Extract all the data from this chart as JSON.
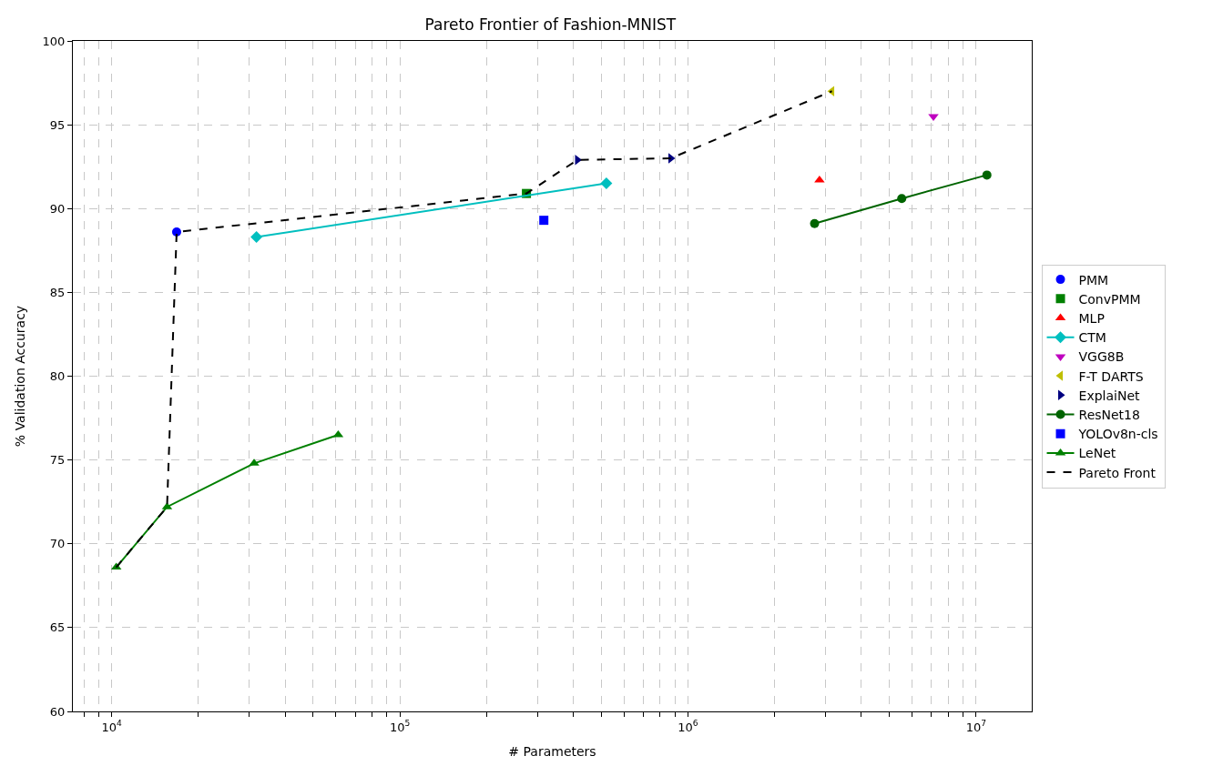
{
  "chart_data": {
    "type": "scatter",
    "title": "Pareto Frontier of Fashion-MNIST",
    "xlabel": "# Parameters",
    "ylabel": "% Validation Accuracy",
    "log": "x",
    "grid": true,
    "legend": "right",
    "xlim": [
      7330,
      15600000
    ],
    "xticks": [
      {
        "value": 8000,
        "label": null
      },
      {
        "value": 9000,
        "label": null
      },
      {
        "value": 10000,
        "label": "10$^{4}$"
      },
      {
        "value": 20000,
        "label": null
      },
      {
        "value": 30000,
        "label": null
      },
      {
        "value": 40000,
        "label": null
      },
      {
        "value": 50000,
        "label": null
      },
      {
        "value": 60000,
        "label": null
      },
      {
        "value": 70000,
        "label": null
      },
      {
        "value": 80000,
        "label": null
      },
      {
        "value": 90000,
        "label": null
      },
      {
        "value": 100000,
        "label": "10$^{5}$"
      },
      {
        "value": 200000,
        "label": null
      },
      {
        "value": 300000,
        "label": null
      },
      {
        "value": 400000,
        "label": null
      },
      {
        "value": 500000,
        "label": null
      },
      {
        "value": 600000,
        "label": null
      },
      {
        "value": 700000,
        "label": null
      },
      {
        "value": 800000,
        "label": null
      },
      {
        "value": 900000,
        "label": null
      },
      {
        "value": 1000000,
        "label": "10$^{6}$"
      },
      {
        "value": 2000000,
        "label": null
      },
      {
        "value": 3000000,
        "label": null
      },
      {
        "value": 4000000,
        "label": null
      },
      {
        "value": 5000000,
        "label": null
      },
      {
        "value": 6000000,
        "label": null
      },
      {
        "value": 7000000,
        "label": null
      },
      {
        "value": 8000000,
        "label": null
      },
      {
        "value": 9000000,
        "label": null
      },
      {
        "value": 10000000,
        "label": "10$^{7}$"
      }
    ],
    "ylim": [
      60,
      100
    ],
    "yticks": [
      60,
      65,
      70,
      75,
      80,
      85,
      90,
      95,
      100
    ],
    "series": [
      {
        "name": "PMM",
        "marker": "circle",
        "color": "#0000ff",
        "x": [
          16800
        ],
        "values": [
          88.6
        ]
      },
      {
        "name": "ConvPMM",
        "marker": "square",
        "color": "#008000",
        "x": [
          275000
        ],
        "values": [
          90.9
        ]
      },
      {
        "name": "MLP",
        "marker": "triangle",
        "color": "#ff0000",
        "x": [
          2860000
        ],
        "values": [
          91.7
        ]
      },
      {
        "name": "CTM",
        "type": "line",
        "marker": "diamond",
        "line_style": "solid",
        "color": "#00bfbf",
        "x": [
          31800,
          521000
        ],
        "values": [
          88.3,
          91.5
        ]
      },
      {
        "name": "VGG8B",
        "marker": "triangle-down",
        "color": "#bf00bf",
        "x": [
          7110000
        ],
        "values": [
          95.5
        ]
      },
      {
        "name": "F-T DARTS",
        "marker": "triangle-left",
        "color": "#bfbf00",
        "x": [
          3160000
        ],
        "values": [
          97.0
        ]
      },
      {
        "name": "ExplaiNet",
        "marker": "triangle-right",
        "color": "#000080",
        "x": [
          413000,
          871000
        ],
        "values": [
          92.9,
          93.0
        ]
      },
      {
        "name": "ResNet18",
        "type": "line",
        "marker": "circle",
        "line_style": "solid",
        "color": "#006400",
        "x": [
          2750000,
          5520000,
          10900000
        ],
        "values": [
          89.1,
          90.6,
          92.0
        ]
      },
      {
        "name": "YOLOv8n-cls",
        "marker": "square",
        "color": "#0000ff",
        "x": [
          316000
        ],
        "values": [
          89.3
        ]
      },
      {
        "name": "LeNet",
        "type": "line",
        "marker": "triangle",
        "line_style": "solid",
        "color": "#008000",
        "x": [
          10370,
          15560,
          31200,
          61100
        ],
        "values": [
          68.6,
          72.2,
          74.8,
          76.5
        ]
      },
      {
        "name": "Pareto Front",
        "type": "line",
        "marker": "none",
        "line_style": "dashed",
        "color": "#000000",
        "x": [
          10370,
          15560,
          16800,
          275000,
          413000,
          871000,
          3160000
        ],
        "values": [
          68.6,
          72.2,
          88.6,
          90.9,
          92.9,
          93.0,
          97.0
        ]
      }
    ]
  }
}
